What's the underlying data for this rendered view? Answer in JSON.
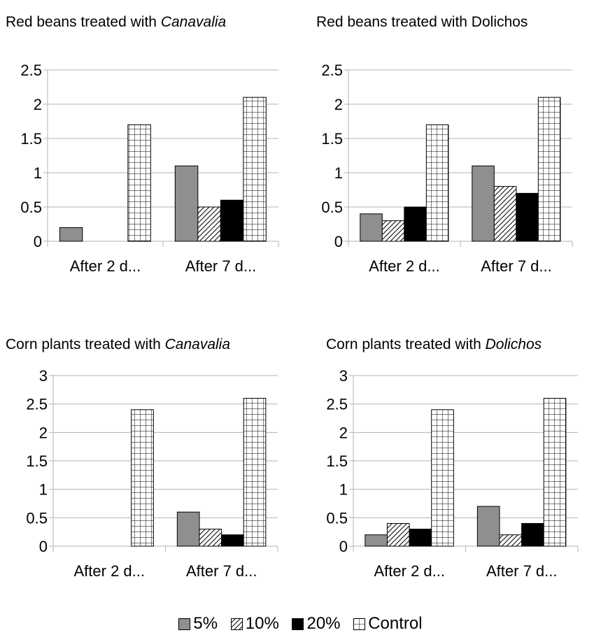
{
  "legend": [
    {
      "label": "5%",
      "pattern": "solid-gray"
    },
    {
      "label": "10%",
      "pattern": "diagonal-hatch"
    },
    {
      "label": "20%",
      "pattern": "solid-black"
    },
    {
      "label": "Control",
      "pattern": "grid-hatch"
    }
  ],
  "colors": {
    "gray": "#8f8f8f",
    "black": "#000000",
    "gridline": "#b3b3b3",
    "axis": "#b3b3b3"
  },
  "chart_data": [
    {
      "type": "bar",
      "title_parts": [
        {
          "text": "Red beans treated with ",
          "italic": false
        },
        {
          "text": "Canavalia",
          "italic": true
        }
      ],
      "categories": [
        "After 2 d...",
        "After 7 d..."
      ],
      "yticks": [
        "0",
        "0.5",
        "1",
        "1.5",
        "2",
        "2.5"
      ],
      "ylim": [
        0,
        2.5
      ],
      "series": [
        {
          "name": "5%",
          "values": [
            0.2,
            1.1
          ]
        },
        {
          "name": "10%",
          "values": [
            0,
            0.5
          ]
        },
        {
          "name": "20%",
          "values": [
            0,
            0.6
          ]
        },
        {
          "name": "Control",
          "values": [
            1.7,
            2.1
          ]
        }
      ]
    },
    {
      "type": "bar",
      "title_parts": [
        {
          "text": "Red beans treated with Dolichos",
          "italic": false
        }
      ],
      "categories": [
        "After 2 d...",
        "After 7 d..."
      ],
      "yticks": [
        "0",
        "0.5",
        "1",
        "1.5",
        "2",
        "2.5"
      ],
      "ylim": [
        0,
        2.5
      ],
      "series": [
        {
          "name": "5%",
          "values": [
            0.4,
            1.1
          ]
        },
        {
          "name": "10%",
          "values": [
            0.3,
            0.8
          ]
        },
        {
          "name": "20%",
          "values": [
            0.5,
            0.7
          ]
        },
        {
          "name": "Control",
          "values": [
            1.7,
            2.1
          ]
        }
      ]
    },
    {
      "type": "bar",
      "title_parts": [
        {
          "text": "Corn plants treated with ",
          "italic": false
        },
        {
          "text": "Canavalia",
          "italic": true
        }
      ],
      "categories": [
        "After 2 d...",
        "After 7 d..."
      ],
      "yticks": [
        "0",
        "0.5",
        "1",
        "1.5",
        "2",
        "2.5",
        "3"
      ],
      "ylim": [
        0,
        3
      ],
      "series": [
        {
          "name": "5%",
          "values": [
            0,
            0.6
          ]
        },
        {
          "name": "10%",
          "values": [
            0,
            0.3
          ]
        },
        {
          "name": "20%",
          "values": [
            0,
            0.2
          ]
        },
        {
          "name": "Control",
          "values": [
            2.4,
            2.6
          ]
        }
      ]
    },
    {
      "type": "bar",
      "title_parts": [
        {
          "text": "Corn plants treated with ",
          "italic": false
        },
        {
          "text": "Dolichos",
          "italic": true
        }
      ],
      "categories": [
        "After 2 d...",
        "After 7 d..."
      ],
      "yticks": [
        "0",
        "0.5",
        "1",
        "1.5",
        "2",
        "2.5",
        "3"
      ],
      "ylim": [
        0,
        3
      ],
      "series": [
        {
          "name": "5%",
          "values": [
            0.2,
            0.7
          ]
        },
        {
          "name": "10%",
          "values": [
            0.4,
            0.2
          ]
        },
        {
          "name": "20%",
          "values": [
            0.3,
            0.4
          ]
        },
        {
          "name": "Control",
          "values": [
            2.4,
            2.6
          ]
        }
      ]
    }
  ]
}
